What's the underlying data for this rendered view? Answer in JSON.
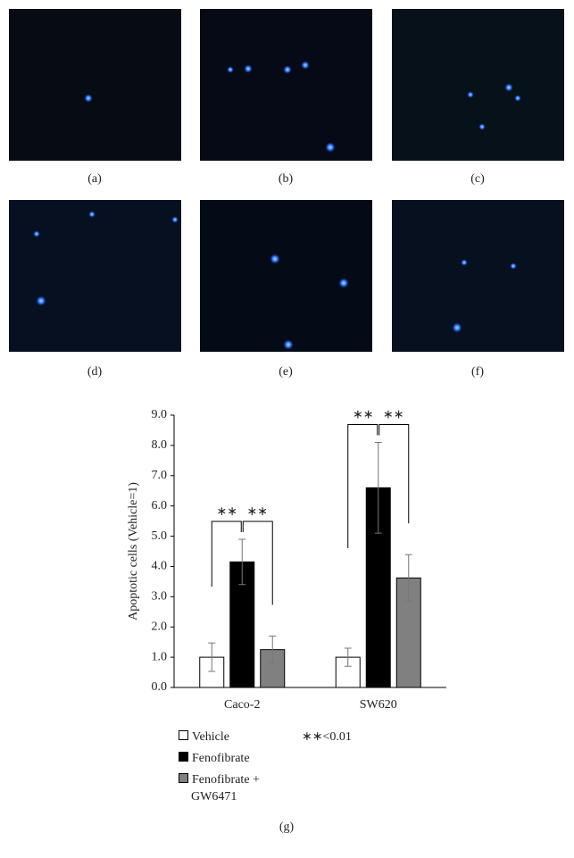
{
  "panels": [
    "(a)",
    "(b)",
    "(c)",
    "(d)",
    "(e)",
    "(f)"
  ],
  "caption": "(g)",
  "chart_data": {
    "type": "bar",
    "y_label": "Apoptotic cells (Vehicle=1)",
    "categories": [
      "Caco-2",
      "SW620"
    ],
    "series": [
      {
        "name": "Vehicle",
        "color": "#ffffff",
        "values": [
          1.0,
          1.0
        ],
        "errors": [
          0.47,
          0.3
        ]
      },
      {
        "name": "Fenofibrate",
        "color": "#000000",
        "values": [
          4.15,
          6.6
        ],
        "errors": [
          0.75,
          1.5
        ]
      },
      {
        "name": "Fenofibrate + GW6471",
        "color": "#808080",
        "values": [
          1.25,
          3.62
        ],
        "errors": [
          0.45,
          0.77
        ]
      }
    ],
    "ylim": [
      0,
      9
    ],
    "yticks": [
      {
        "value": 0,
        "label": "0.0"
      },
      {
        "value": 1,
        "label": "1.0"
      },
      {
        "value": 2,
        "label": "2.0"
      },
      {
        "value": 3,
        "label": "3.0"
      },
      {
        "value": 4,
        "label": "4.0"
      },
      {
        "value": 5,
        "label": "5.0"
      },
      {
        "value": 6,
        "label": "6.0"
      },
      {
        "value": 7,
        "label": "7.0"
      },
      {
        "value": 8,
        "label": "8.0"
      },
      {
        "value": 9,
        "label": "9.0"
      }
    ],
    "significance_labels": [
      "∗∗",
      "∗∗",
      "∗∗",
      "∗∗"
    ],
    "note": "∗∗<0.01"
  }
}
